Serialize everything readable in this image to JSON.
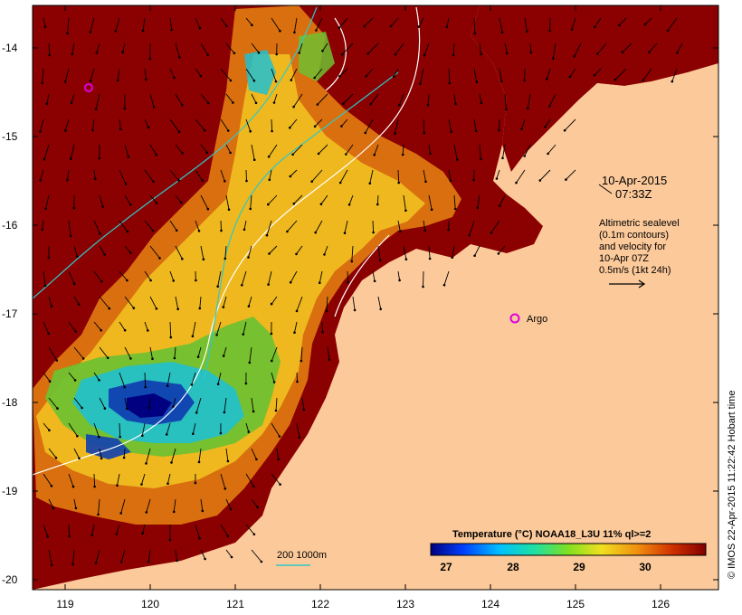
{
  "map": {
    "colors": {
      "land": "#fcc99a",
      "sea_warm": "#8b0000",
      "sea_orange": "#e07810",
      "sea_yellow": "#f0c020",
      "sea_green": "#70c030",
      "sea_cyan": "#20c0d0",
      "sea_blue": "#1040b0",
      "contour_white": "#ffffff",
      "contour_cyan": "#30c8c8",
      "argo_marker": "#e000e0"
    },
    "lat_ticks": [
      "-14",
      "-15",
      "-16",
      "-17",
      "-18",
      "-19",
      "-20"
    ],
    "lon_ticks": [
      "119",
      "120",
      "121",
      "122",
      "123",
      "124",
      "125",
      "126"
    ],
    "date_line1": "10-Apr-2015",
    "date_line2": "07:33Z",
    "legend_lines": [
      "Altimetric sealevel",
      "(0.1m contours)",
      "and velocity for",
      "10-Apr 07Z",
      "0.5m/s (1kt 24h)"
    ],
    "argo_label": "Argo",
    "depth_label": "200  1000m",
    "colorbar_title": "Temperature (°C) NOAA18_L3U 11% ql>=2",
    "colorbar_ticks": [
      "27",
      "28",
      "29",
      "30"
    ],
    "credit": "© IMOS 22-Apr-2015 11:22:42 Hobart time"
  }
}
